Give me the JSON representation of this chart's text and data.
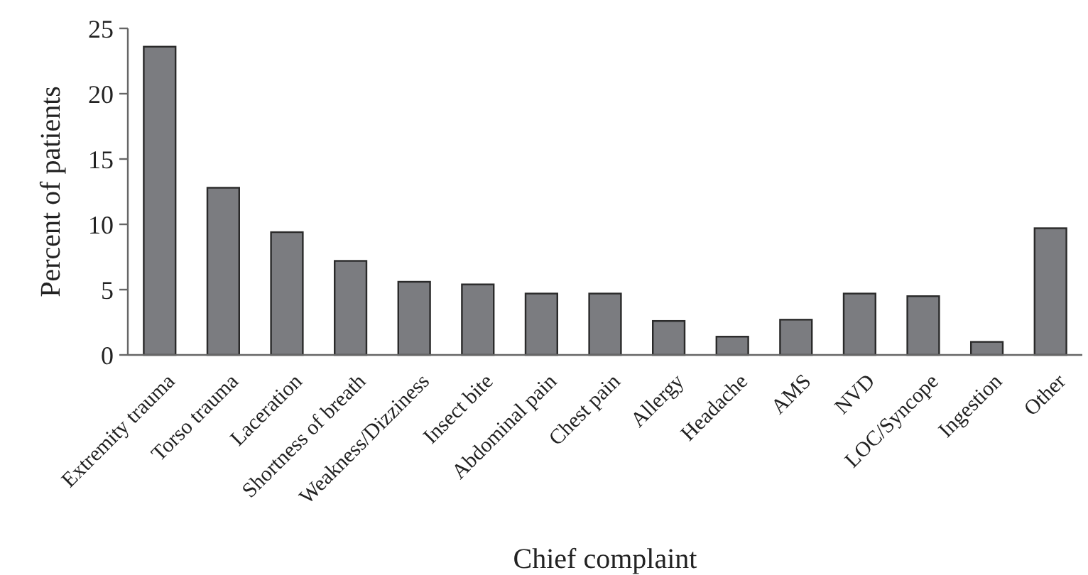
{
  "chart_data": {
    "type": "bar",
    "xlabel": "Chief complaint",
    "ylabel": "Percent of patients",
    "categories": [
      "Extremity trauma",
      "Torso trauma",
      "Laceration",
      "Shortness of breath",
      "Weakness/Dizziness",
      "Insect bite",
      "Abdominal pain",
      "Chest pain",
      "Allergy",
      "Headache",
      "AMS",
      "NVD",
      "LOC/Syncope",
      "Ingestion",
      "Other"
    ],
    "values": [
      23.6,
      12.8,
      9.4,
      7.2,
      5.6,
      5.4,
      4.7,
      4.7,
      2.6,
      1.4,
      2.7,
      4.7,
      4.5,
      1.0,
      9.7
    ],
    "color": "#7b7c80",
    "ylim": [
      0,
      25
    ],
    "yticks": [
      0,
      5,
      10,
      15,
      20,
      25
    ],
    "grid": false
  }
}
